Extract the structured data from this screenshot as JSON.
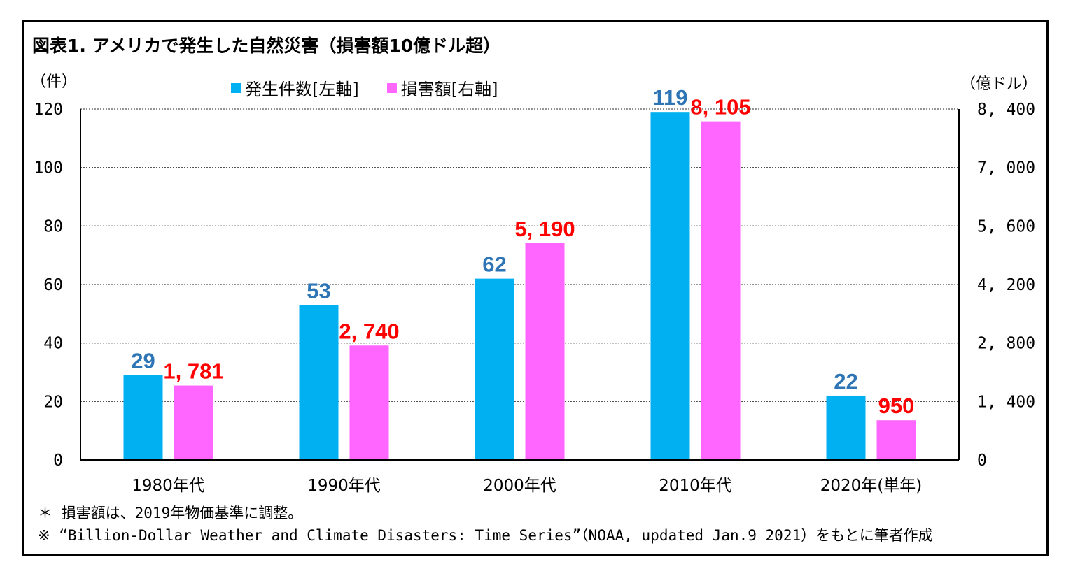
{
  "title": "図表1.  アメリカで発生した自然災害（損害額10億ドル超）",
  "unit_left": "（件）",
  "unit_right": "（億ドル）",
  "legend": [
    {
      "label": "発生件数[左軸]",
      "color": "#00b0f0"
    },
    {
      "label": "損害額[右軸]",
      "color": "#ff66ff"
    }
  ],
  "notes": [
    "＊  損害額は、2019年物価基準に調整。",
    "※ “Billion-Dollar Weather and Climate Disasters: Time Series”（NOAA, updated Jan.9 2021）をもとに筆者作成"
  ],
  "colors": {
    "count_bar": "#00b0f0",
    "damage_bar": "#ff66ff",
    "count_label": "#2e75b6",
    "damage_label": "#ff0000"
  },
  "chart_data": {
    "type": "bar",
    "categories": [
      "1980年代",
      "1990年代",
      "2000年代",
      "2010年代",
      "2020年(単年)"
    ],
    "series": [
      {
        "name": "発生件数[左軸]",
        "axis": "left",
        "values": [
          29,
          53,
          62,
          119,
          22
        ],
        "labels": [
          "29",
          "53",
          "62",
          "119",
          "22"
        ]
      },
      {
        "name": "損害額[右軸]",
        "axis": "right",
        "values": [
          1781,
          2740,
          5190,
          8105,
          950
        ],
        "labels": [
          "1, 781",
          "2, 740",
          "5, 190",
          "8, 105",
          "950"
        ]
      }
    ],
    "ylim_left": [
      0,
      120
    ],
    "ylim_right": [
      0,
      8400
    ],
    "yticks_left": [
      "0",
      "20",
      "40",
      "60",
      "80",
      "100",
      "120"
    ],
    "yticks_right": [
      "0",
      "1, 400",
      "2, 800",
      "4, 200",
      "5, 600",
      "7, 000",
      "8, 400"
    ],
    "grid": "dotted horizontal"
  }
}
